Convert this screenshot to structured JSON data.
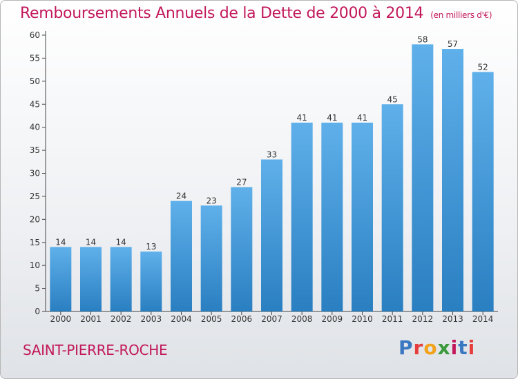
{
  "title": "Remboursements Annuels de la Dette de 2000 à 2014",
  "subtitle": "(en milliers d'€)",
  "place_name": "SAINT-PIERRE-ROCHE",
  "logo": {
    "text": "Proxiti",
    "colors": [
      "#3a78c2",
      "#e63d3d",
      "#f2a21b",
      "#3a9a3a",
      "#c2185b",
      "#3a78c2",
      "#e63d3d"
    ]
  },
  "colors": {
    "title": "#c2185b",
    "bar_top": "#5fb0ea",
    "bar_bottom": "#2a7fc1"
  },
  "chart_data": {
    "type": "bar",
    "categories": [
      "2000",
      "2001",
      "2002",
      "2003",
      "2004",
      "2005",
      "2006",
      "2007",
      "2008",
      "2009",
      "2010",
      "2011",
      "2012",
      "2013",
      "2014"
    ],
    "values": [
      14,
      14,
      14,
      13,
      24,
      23,
      27,
      33,
      41,
      41,
      41,
      45,
      58,
      57,
      52
    ],
    "ylim": [
      0,
      60
    ],
    "yticks": [
      0,
      5,
      10,
      15,
      20,
      25,
      30,
      35,
      40,
      45,
      50,
      55,
      60
    ],
    "grid": false,
    "legend": "none"
  }
}
